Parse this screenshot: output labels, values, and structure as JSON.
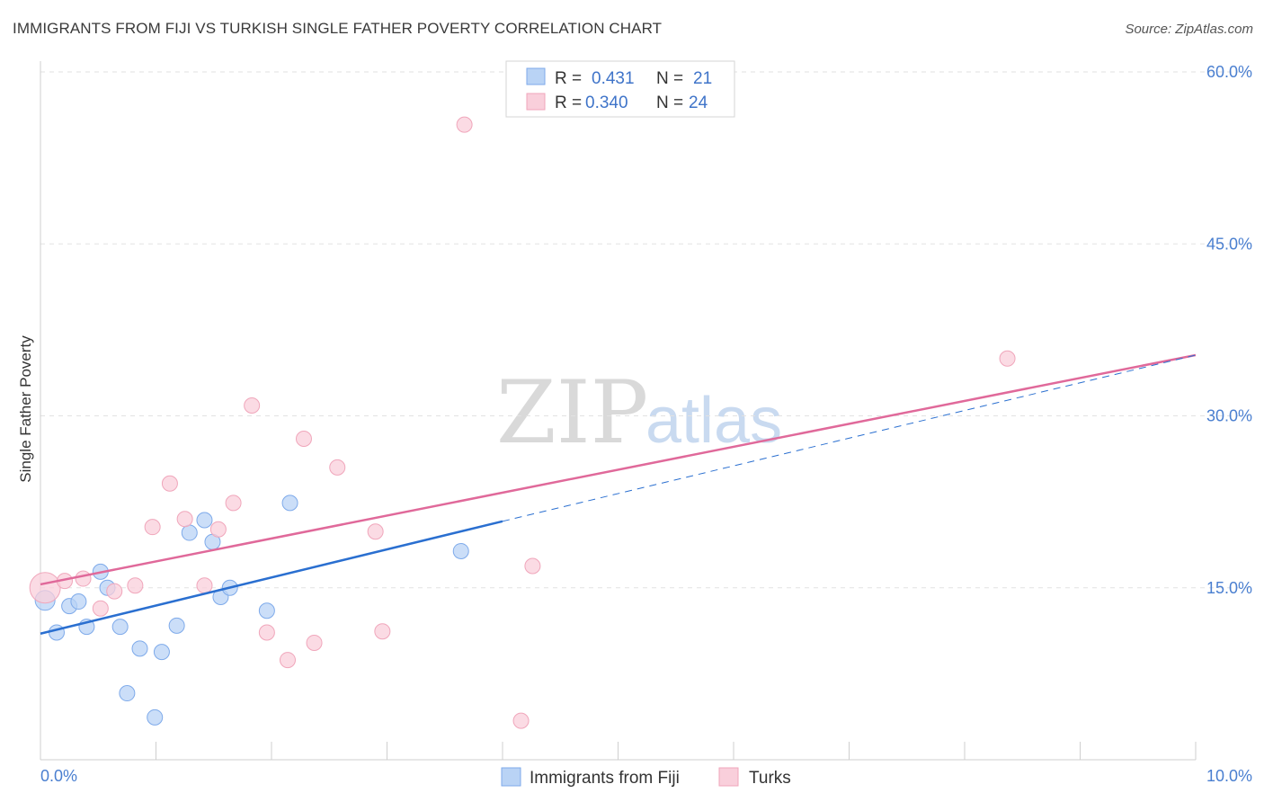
{
  "title": "IMMIGRANTS FROM FIJI VS TURKISH SINGLE FATHER POVERTY CORRELATION CHART",
  "source": "Source: ZipAtlas.com",
  "watermark": {
    "zip": "ZIP",
    "atlas": "atlas"
  },
  "legend": {
    "r_label": "R =",
    "n_label": "N =",
    "fiji": {
      "r": "0.431",
      "n": "21"
    },
    "turks": {
      "r": "0.340",
      "n": "24"
    }
  },
  "chart_data": {
    "type": "scatter",
    "title": "IMMIGRANTS FROM FIJI VS TURKISH SINGLE FATHER POVERTY CORRELATION CHART",
    "xlabel": "",
    "ylabel": "Single Father Poverty",
    "xlim": [
      0,
      10
    ],
    "ylim": [
      0,
      60
    ],
    "x_tick_labels": [
      "0.0%",
      "10.0%"
    ],
    "y_ticks": [
      15,
      30,
      45,
      60
    ],
    "y_tick_labels": [
      "15.0%",
      "30.0%",
      "45.0%",
      "60.0%"
    ],
    "grid": true,
    "series": [
      {
        "name": "Immigrants from Fiji",
        "color": "#7eaaea",
        "fill": "#b9d3f5",
        "line_color": "#2a6fd0",
        "points": [
          [
            0.04,
            13.9
          ],
          [
            0.14,
            11.1
          ],
          [
            0.25,
            13.4
          ],
          [
            0.33,
            13.8
          ],
          [
            0.4,
            11.6
          ],
          [
            0.52,
            16.4
          ],
          [
            0.58,
            15.0
          ],
          [
            0.69,
            11.6
          ],
          [
            0.86,
            9.7
          ],
          [
            0.75,
            5.8
          ],
          [
            0.99,
            3.7
          ],
          [
            1.05,
            9.4
          ],
          [
            1.18,
            11.7
          ],
          [
            1.29,
            19.8
          ],
          [
            1.42,
            20.9
          ],
          [
            1.49,
            19.0
          ],
          [
            1.56,
            14.2
          ],
          [
            1.64,
            15.0
          ],
          [
            1.96,
            13.0
          ],
          [
            2.16,
            22.4
          ],
          [
            3.64,
            18.2
          ]
        ],
        "trend_solid": [
          [
            0,
            11.0
          ],
          [
            4.0,
            20.8
          ]
        ],
        "trend_dashed": [
          [
            4.0,
            20.8
          ],
          [
            10.0,
            35.3
          ]
        ]
      },
      {
        "name": "Turks",
        "color": "#f0a6bb",
        "fill": "#f9cfdb",
        "line_color": "#e0699a",
        "points": [
          [
            0.04,
            15.0
          ],
          [
            0.21,
            15.6
          ],
          [
            0.37,
            15.8
          ],
          [
            0.52,
            13.2
          ],
          [
            0.64,
            14.7
          ],
          [
            0.82,
            15.2
          ],
          [
            0.97,
            20.3
          ],
          [
            1.12,
            24.1
          ],
          [
            1.25,
            21.0
          ],
          [
            1.42,
            15.2
          ],
          [
            1.54,
            20.1
          ],
          [
            1.67,
            22.4
          ],
          [
            1.83,
            30.9
          ],
          [
            1.96,
            11.1
          ],
          [
            2.14,
            8.7
          ],
          [
            2.28,
            28.0
          ],
          [
            2.37,
            10.2
          ],
          [
            2.57,
            25.5
          ],
          [
            2.9,
            19.9
          ],
          [
            2.96,
            11.2
          ],
          [
            3.67,
            55.4
          ],
          [
            4.16,
            3.4
          ],
          [
            4.26,
            16.9
          ],
          [
            8.37,
            35.0
          ]
        ],
        "trend_solid": [
          [
            0,
            15.3
          ],
          [
            10.0,
            35.3
          ]
        ]
      }
    ]
  },
  "bottom_legend": {
    "fiji": "Immigrants from Fiji",
    "turks": "Turks"
  }
}
